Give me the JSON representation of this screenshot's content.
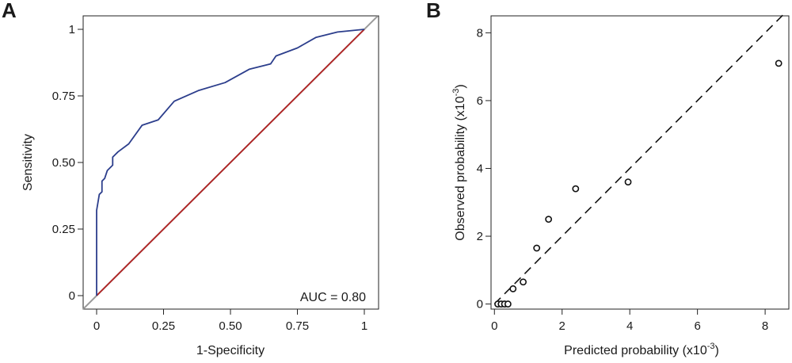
{
  "chart_data": [
    {
      "panel": "A",
      "type": "line",
      "title": "",
      "xlabel": "1-Specificity",
      "ylabel": "Sensitivity",
      "xlim": [
        0,
        1
      ],
      "ylim": [
        0,
        1
      ],
      "xticks": [
        "0",
        "0.25",
        "0.50",
        "0.75",
        "1"
      ],
      "yticks": [
        "0",
        "0.25",
        "0.50",
        "0.75",
        "1"
      ],
      "annotation": "AUC = 0.80",
      "series": [
        {
          "color": "#2c3e8c",
          "x": [
            0,
            0,
            0.01,
            0.02,
            0.02,
            0.03,
            0.04,
            0.06,
            0.06,
            0.08,
            0.12,
            0.17,
            0.23,
            0.29,
            0.38,
            0.48,
            0.57,
            0.65,
            0.67,
            0.75,
            0.82,
            0.9,
            1
          ],
          "y": [
            0,
            0.32,
            0.38,
            0.39,
            0.43,
            0.44,
            0.47,
            0.49,
            0.52,
            0.54,
            0.57,
            0.64,
            0.66,
            0.73,
            0.77,
            0.8,
            0.85,
            0.87,
            0.9,
            0.93,
            0.97,
            0.99,
            1
          ]
        },
        {
          "color": "#b22222",
          "x": [
            0,
            1
          ],
          "y": [
            0,
            1
          ]
        }
      ],
      "grid": false
    },
    {
      "panel": "B",
      "type": "scatter",
      "title": "",
      "xlabel": "Predicted probability (x10",
      "xlabel_sup": "-3",
      "xlabel_end": ")",
      "ylabel": "Observed probability (x10",
      "ylabel_sup": "-3",
      "ylabel_end": ")",
      "xlim": [
        -0.1,
        8.7
      ],
      "ylim": [
        -0.15,
        8.5
      ],
      "xticks": [
        0,
        2,
        4,
        6,
        8
      ],
      "yticks": [
        0,
        2,
        4,
        6,
        8
      ],
      "reference_line": {
        "style": "dashed",
        "x": [
          0,
          8.6
        ],
        "y": [
          0,
          8.6
        ]
      },
      "points": [
        {
          "x": 0.1,
          "y": 0.0
        },
        {
          "x": 0.2,
          "y": 0.0
        },
        {
          "x": 0.3,
          "y": 0.0
        },
        {
          "x": 0.4,
          "y": 0.0
        },
        {
          "x": 0.55,
          "y": 0.45
        },
        {
          "x": 0.85,
          "y": 0.65
        },
        {
          "x": 1.25,
          "y": 1.65
        },
        {
          "x": 1.6,
          "y": 2.5
        },
        {
          "x": 2.4,
          "y": 3.4
        },
        {
          "x": 3.95,
          "y": 3.6
        },
        {
          "x": 8.4,
          "y": 7.1
        }
      ],
      "grid": false
    }
  ]
}
